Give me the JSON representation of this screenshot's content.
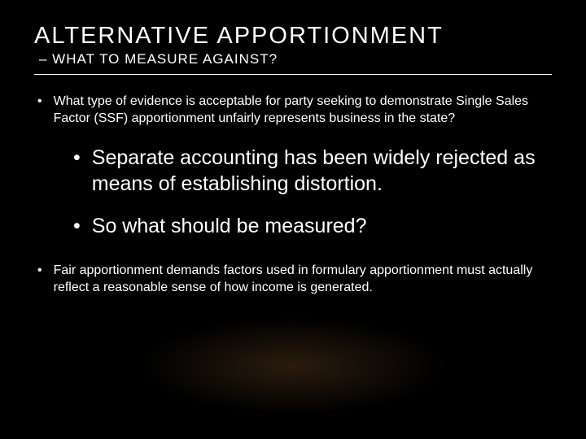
{
  "title": "ALTERNATIVE APPORTIONMENT",
  "subtitle": "– WHAT TO MEASURE AGAINST?",
  "bullets": {
    "b1": "What type of evidence is acceptable for party seeking to demonstrate Single Sales Factor (SSF) apportionment unfairly represents business in the state?",
    "b2": "Separate accounting has been widely rejected as means of establishing distortion.",
    "b3": "So what should be measured?",
    "b4": "Fair apportionment demands factors used in formulary apportionment must actually reflect a reasonable sense of how income is generated."
  },
  "style": {
    "background_color": "#000000",
    "text_color": "#ffffff",
    "title_fontsize": 29,
    "title_letter_spacing": 2,
    "subtitle_fontsize": 17,
    "body_small_fontsize": 16,
    "body_large_fontsize": 25,
    "glow_color": "rgba(120,80,40,0.35)",
    "font_family": "Arial"
  }
}
